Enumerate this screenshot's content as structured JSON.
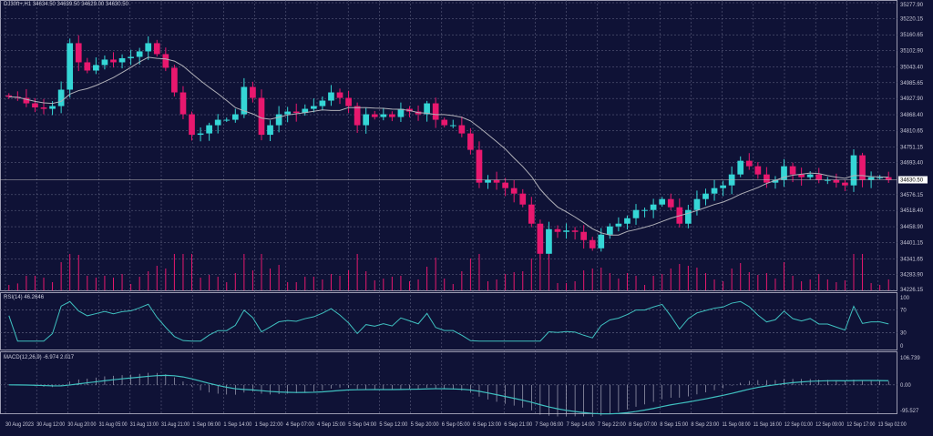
{
  "main": {
    "title": "DJ30ft+,H1  34634.50 34639.50 34629.00 34630.50",
    "current_price": "34630.50"
  },
  "rsi": {
    "label": "RSI(14) 46.2646",
    "levels": [
      "100",
      "70",
      "30",
      "0"
    ]
  },
  "macd": {
    "label": "MACD(12,26,9) -6.974 2.017",
    "levels": [
      "106.739",
      "0.00",
      "-95.527"
    ]
  },
  "colors": {
    "background": "#0f1236",
    "bull": "#35d6d6",
    "bear": "#e8186e",
    "ma": "#b0b0b8",
    "grid": "#6a6d8a",
    "indicator": "#3fc0c0"
  },
  "chart_data": {
    "type": "candlestick",
    "price_ticks": [
      "35277.90",
      "35220.15",
      "35160.65",
      "35102.90",
      "35043.40",
      "34985.65",
      "34927.90",
      "34868.40",
      "34810.65",
      "34751.15",
      "34693.40",
      "34576.15",
      "34518.40",
      "34458.90",
      "34401.15",
      "34341.65",
      "34283.90",
      "34226.15"
    ],
    "ylim": [
      34226.15,
      35277.9
    ],
    "time_ticks": [
      "30 Aug 2023",
      "30 Aug 12:00",
      "30 Aug 20:00",
      "31 Aug 05:00",
      "31 Aug 13:00",
      "31 Aug 21:00",
      "1 Sep 06:00",
      "1 Sep 14:00",
      "1 Sep 22:00",
      "4 Sep 07:00",
      "4 Sep 15:00",
      "5 Sep 04:00",
      "5 Sep 12:00",
      "5 Sep 20:00",
      "6 Sep 05:00",
      "6 Sep 13:00",
      "6 Sep 21:00",
      "7 Sep 06:00",
      "7 Sep 14:00",
      "7 Sep 22:00",
      "8 Sep 07:00",
      "8 Sep 15:00",
      "8 Sep 23:00",
      "11 Sep 08:00",
      "11 Sep 16:00",
      "12 Sep 01:00",
      "12 Sep 09:00",
      "12 Sep 17:00",
      "13 Sep 02:00"
    ],
    "closes": [
      34934,
      34930,
      34910,
      34895,
      34890,
      34900,
      34960,
      35130,
      35060,
      35030,
      35050,
      35070,
      35060,
      35075,
      35080,
      35100,
      35130,
      35090,
      35040,
      34950,
      34870,
      34795,
      34800,
      34830,
      34850,
      34850,
      34870,
      34970,
      34930,
      34795,
      34830,
      34870,
      34880,
      34875,
      34890,
      34900,
      34920,
      34950,
      34930,
      34900,
      34830,
      34870,
      34860,
      34870,
      34860,
      34890,
      34880,
      34870,
      34910,
      34850,
      34830,
      34830,
      34800,
      34740,
      34620,
      34630,
      34620,
      34600,
      34580,
      34540,
      34470,
      34360,
      34450,
      34440,
      34445,
      34440,
      34410,
      34380,
      34430,
      34460,
      34470,
      34490,
      34520,
      34520,
      34540,
      34560,
      34530,
      34470,
      34520,
      34560,
      34580,
      34600,
      34610,
      34650,
      34700,
      34680,
      34650,
      34620,
      34630,
      34680,
      34650,
      34640,
      34650,
      34630,
      34630,
      34620,
      34610,
      34720,
      34630,
      34640,
      34640,
      34630
    ]
  }
}
